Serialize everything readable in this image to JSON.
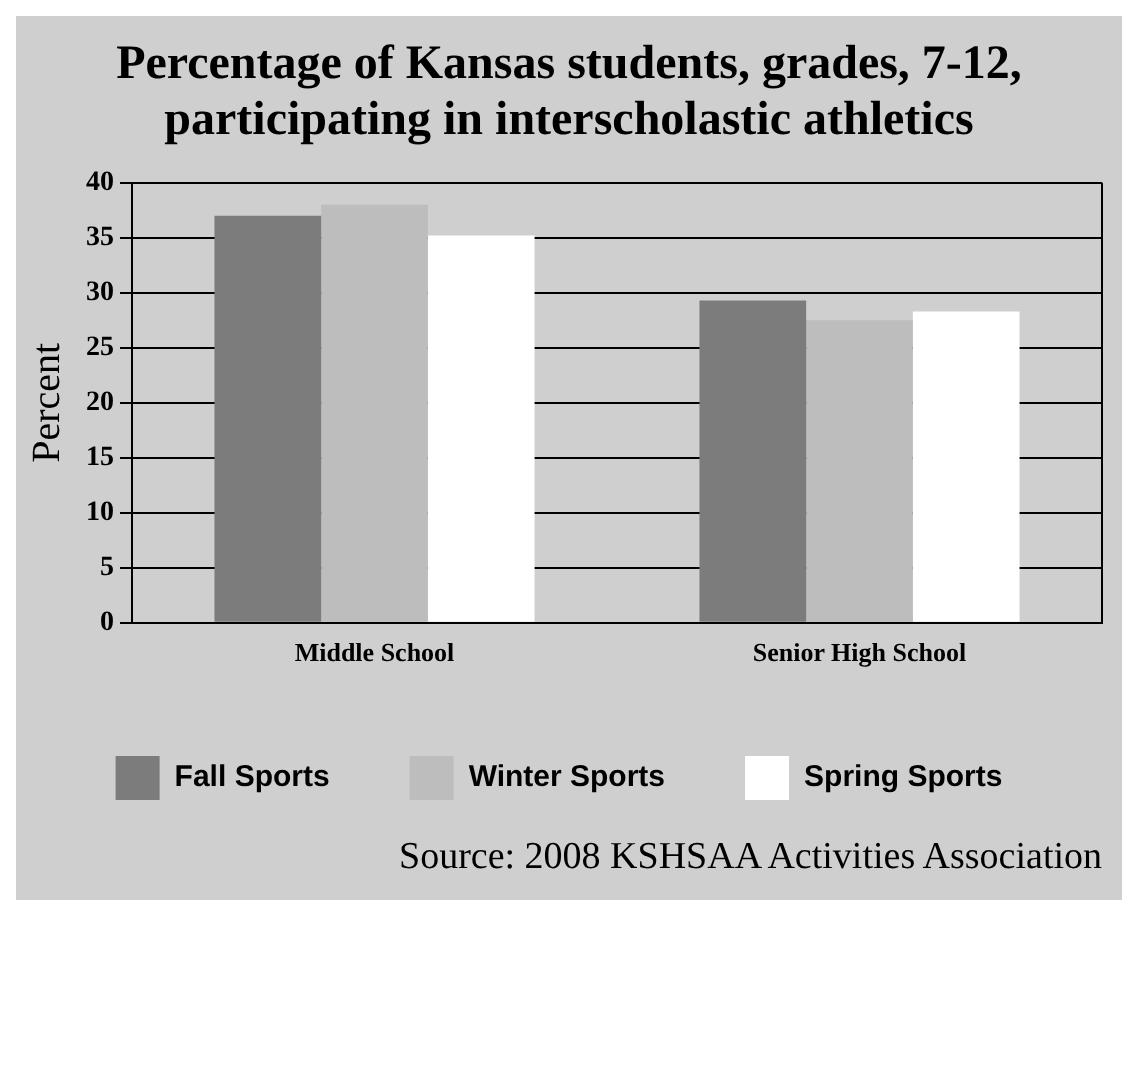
{
  "chart_data": {
    "type": "bar",
    "title": "Percentage of Kansas students, grades, 7-12, participating in interscholastic athletics",
    "ylabel": "Percent",
    "categories": [
      "Middle School",
      "Senior High School"
    ],
    "series": [
      {
        "name": "Fall Sports",
        "color": "#7c7c7c",
        "values": [
          37,
          29.3
        ]
      },
      {
        "name": "Winter Sports",
        "color": "#bdbdbd",
        "values": [
          38,
          27.5
        ]
      },
      {
        "name": "Spring Sports",
        "color": "#ffffff",
        "values": [
          35.2,
          28.3
        ]
      }
    ],
    "ylim": [
      0,
      40
    ],
    "yticks": [
      0,
      5,
      10,
      15,
      20,
      25,
      30,
      35,
      40
    ],
    "grid": "y",
    "legend": "bottom",
    "annotations": [
      "Source:  2008 KSHSAA Activities Association"
    ]
  }
}
